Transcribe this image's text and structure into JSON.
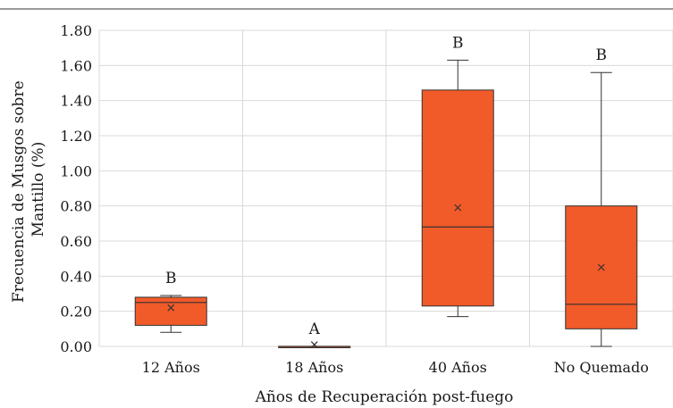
{
  "chart_data": {
    "type": "boxplot",
    "xlabel": "Años de Recuperación post-fuego",
    "ylabel_lines": [
      "Frecuencia de Musgos sobre",
      "Mantillo (%)"
    ],
    "ylim": [
      0,
      1.8
    ],
    "yticks": [
      "0.00",
      "0.20",
      "0.40",
      "0.60",
      "0.80",
      "1.00",
      "1.20",
      "1.40",
      "1.60",
      "1.80"
    ],
    "grid": "y-major and vertical category separators",
    "box_color": "#f15a29",
    "categories": [
      "12 Años",
      "18 Años",
      "40 Años",
      "No Quemado"
    ],
    "boxes": [
      {
        "min": 0.08,
        "q1": 0.12,
        "median": 0.25,
        "q3": 0.28,
        "max": 0.29,
        "mean": 0.22,
        "significance": "B"
      },
      {
        "min": 0.0,
        "q1": 0.0,
        "median": 0.0,
        "q3": 0.0,
        "max": 0.0,
        "mean": 0.01,
        "significance": "A"
      },
      {
        "min": 0.17,
        "q1": 0.23,
        "median": 0.68,
        "q3": 1.46,
        "max": 1.63,
        "mean": 0.79,
        "significance": "B"
      },
      {
        "min": 0.0,
        "q1": 0.1,
        "median": 0.24,
        "q3": 0.8,
        "max": 1.56,
        "mean": 0.45,
        "significance": "B"
      }
    ]
  }
}
